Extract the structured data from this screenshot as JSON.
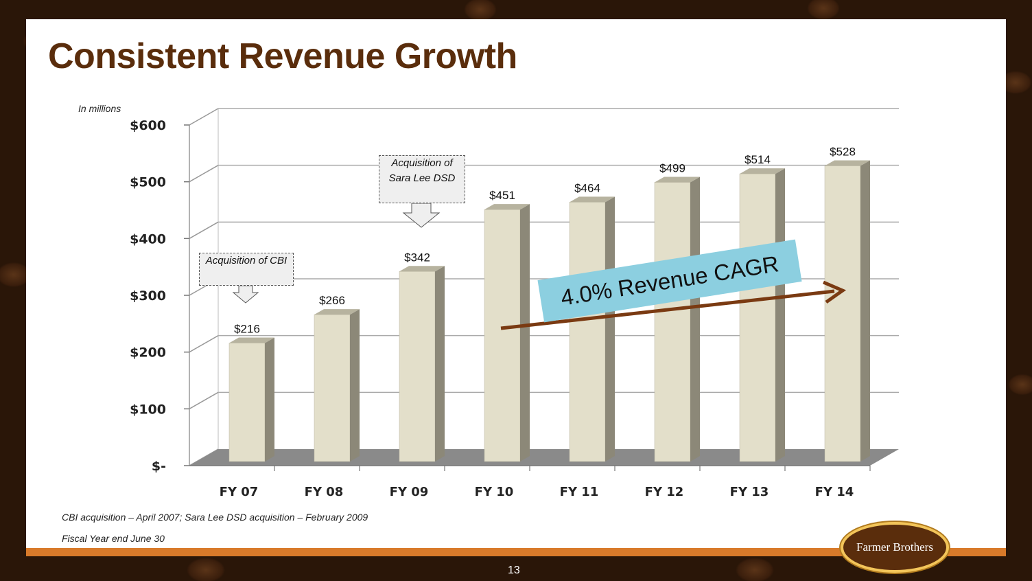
{
  "slide": {
    "title": "Consistent Revenue Growth",
    "units_note": "In millions",
    "footnote_1": "CBI acquisition – April 2007; Sara Lee DSD acquisition – February 2009",
    "footnote_2": "Fiscal Year end June 30",
    "page_number": "13",
    "logo_text": "Farmer Brothers"
  },
  "callouts": {
    "cbi": "Acquisition of CBI",
    "sara_lee": "Acquisition of Sara Lee DSD",
    "cagr": "4.0% Revenue CAGR"
  },
  "colors": {
    "title": "#5a2d0c",
    "bar_face": "#e3dfca",
    "bar_side": "#8c8878",
    "bar_top": "#b7b39f",
    "accent_bar": "#d87a2a",
    "cagr_box": "#8ccfe0",
    "cagr_arrow": "#7a3a12"
  },
  "chart_data": {
    "type": "bar",
    "categories": [
      "FY 07",
      "FY 08",
      "FY 09",
      "FY 10",
      "FY 11",
      "FY 12",
      "FY 13",
      "FY 14"
    ],
    "values": [
      216,
      266,
      342,
      451,
      464,
      499,
      514,
      528
    ],
    "value_labels": [
      "$216",
      "$266",
      "$342",
      "$451",
      "$464",
      "$499",
      "$514",
      "$528"
    ],
    "yticks": [
      0,
      100,
      200,
      300,
      400,
      500,
      600
    ],
    "ytick_labels": [
      "$-",
      "$100",
      "$200",
      "$300",
      "$400",
      "$500",
      "$600"
    ],
    "ylim": [
      0,
      600
    ],
    "grid": true,
    "title": "",
    "xlabel": "",
    "ylabel": ""
  }
}
